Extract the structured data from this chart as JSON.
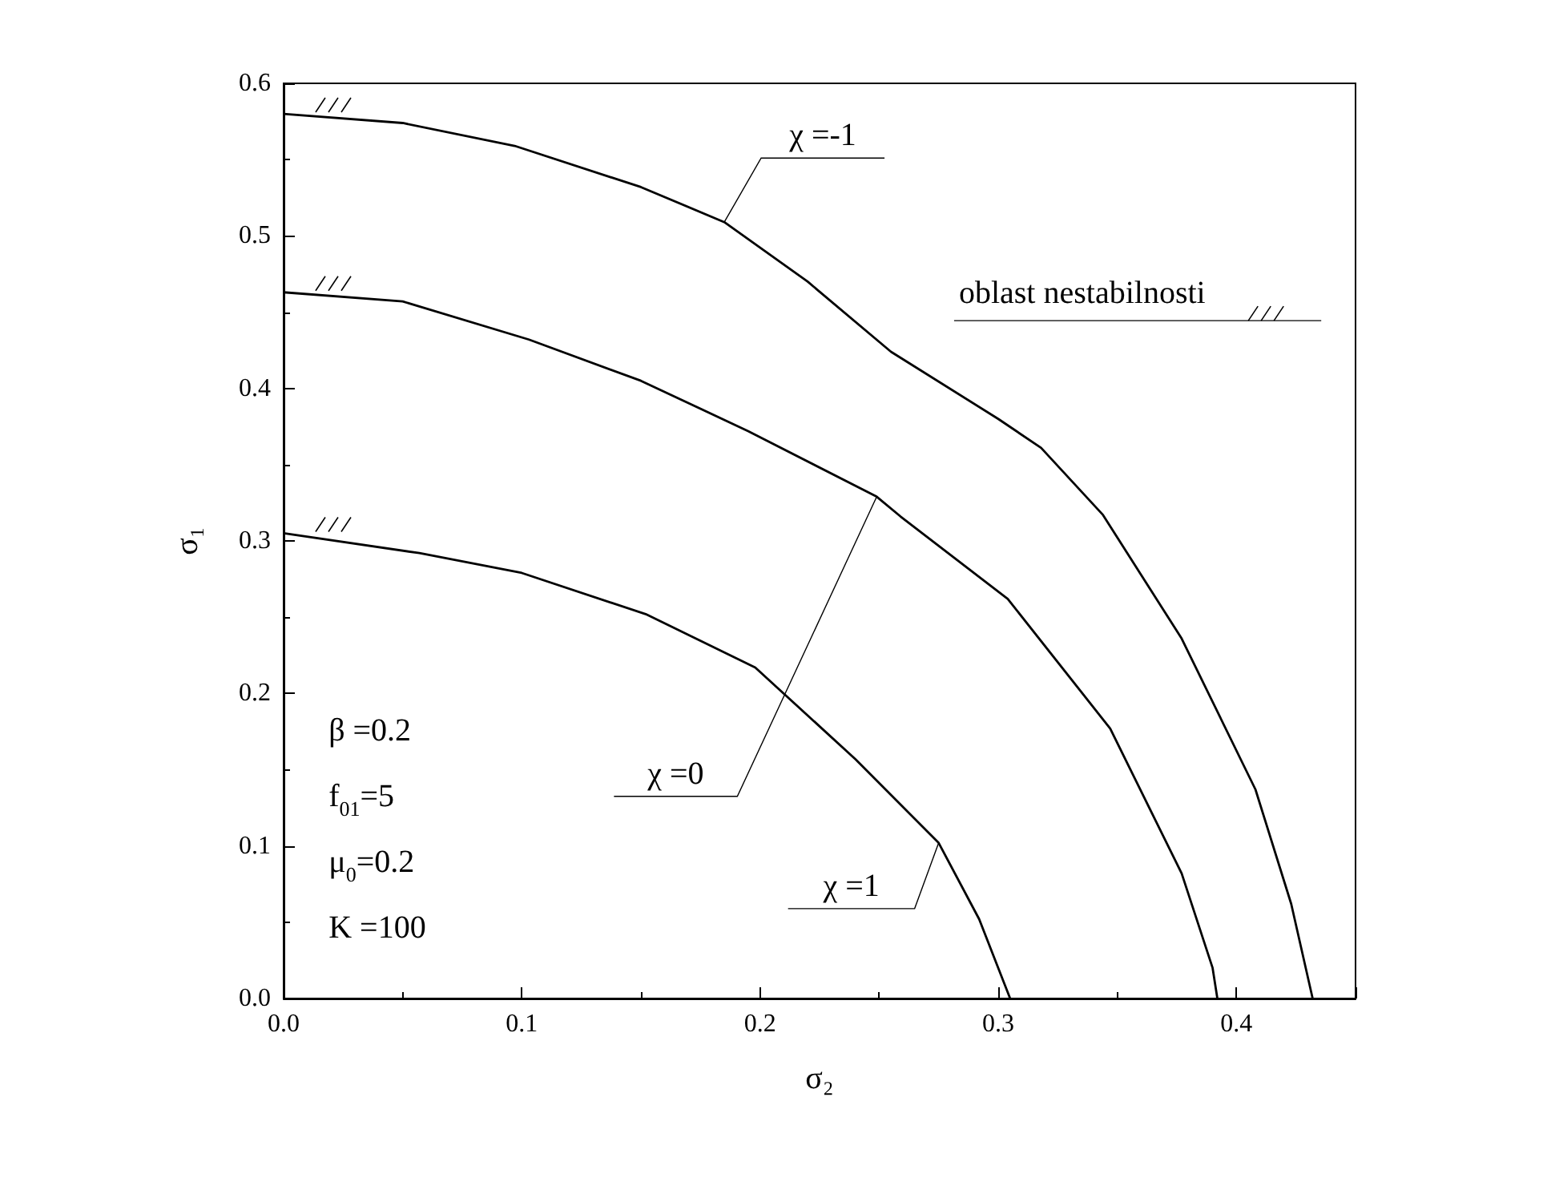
{
  "chart_data": {
    "type": "line",
    "xlabel": "σ₂",
    "ylabel": "σ₁",
    "xlim": [
      0,
      0.45
    ],
    "ylim": [
      0,
      0.6
    ],
    "xticks": [
      {
        "value": 0,
        "label": "0.0"
      },
      {
        "value": 0.1,
        "label": "0.1"
      },
      {
        "value": 0.2,
        "label": "0.2"
      },
      {
        "value": 0.3,
        "label": "0.3"
      },
      {
        "value": 0.4,
        "label": "0.4"
      }
    ],
    "yticks": [
      {
        "value": 0,
        "label": "0.0"
      },
      {
        "value": 0.1,
        "label": "0.1"
      },
      {
        "value": 0.2,
        "label": "0.2"
      },
      {
        "value": 0.3,
        "label": "0.3"
      },
      {
        "value": 0.4,
        "label": "0.4"
      },
      {
        "value": 0.5,
        "label": "0.5"
      },
      {
        "value": 0.6,
        "label": "0.6"
      }
    ],
    "marker": "none",
    "line_style": "solid",
    "series": [
      {
        "color": "#000000",
        "x": [
          0,
          0.05,
          0.097,
          0.15,
          0.185,
          0.22,
          0.255,
          0.3,
          0.318,
          0.344,
          0.377,
          0.408,
          0.423,
          0.432
        ],
        "values": [
          0.58,
          0.574,
          0.559,
          0.532,
          0.509,
          0.47,
          0.424,
          0.38,
          0.361,
          0.317,
          0.236,
          0.137,
          0.062,
          0
        ]
      },
      {
        "color": "#000000",
        "x": [
          0,
          0.05,
          0.103,
          0.15,
          0.195,
          0.249,
          0.259,
          0.304,
          0.347,
          0.377,
          0.39,
          0.392
        ],
        "values": [
          0.463,
          0.457,
          0.432,
          0.405,
          0.372,
          0.329,
          0.316,
          0.262,
          0.177,
          0.082,
          0.02,
          0
        ]
      },
      {
        "color": "#000000",
        "x": [
          0,
          0.057,
          0.1,
          0.152,
          0.198,
          0.24,
          0.275,
          0.292,
          0.305
        ],
        "values": [
          0.305,
          0.292,
          0.279,
          0.252,
          0.217,
          0.157,
          0.102,
          0.052,
          0
        ]
      }
    ],
    "annotations": [
      {
        "text": "χ =-1",
        "x": 0.185,
        "y": 0.509
      },
      {
        "text": "χ =0",
        "x": 0.249,
        "y": 0.329
      },
      {
        "text": "χ =1",
        "x": 0.275,
        "y": 0.102
      },
      "oblast nestabilnosti",
      "β =0.2",
      "f$_{01}$=5",
      "μ$_{0}$=0.2",
      "K =100"
    ]
  }
}
